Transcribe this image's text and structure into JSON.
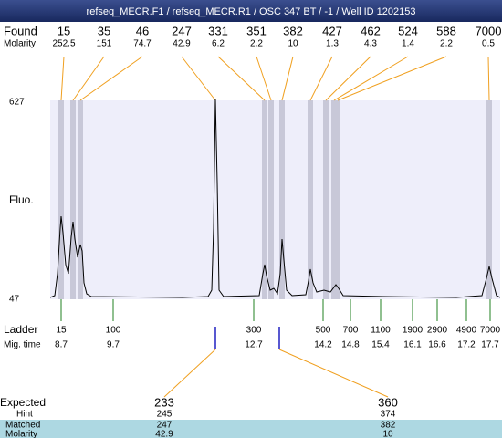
{
  "title": "refseq_MECR.F1 / refseq_MECR.R1 / OSC 347 BT / -1 / Well ID 1202153",
  "found": {
    "label": "Found",
    "molarity_label": "Molarity",
    "sizes": [
      15,
      35,
      46,
      247,
      331,
      351,
      382,
      427,
      462,
      524,
      588,
      7000
    ],
    "molarity": [
      252.5,
      151,
      74.7,
      42.9,
      6.2,
      2.2,
      10,
      1.3,
      4.3,
      1.4,
      2.2,
      0.5
    ]
  },
  "axis": {
    "label": "Fluo.",
    "max": 627,
    "min": 47
  },
  "ladder": {
    "label": "Ladder",
    "mig_label": "Mig. time",
    "sizes": [
      15,
      100,
      300,
      500,
      700,
      1100,
      1900,
      2900,
      4900,
      7000
    ],
    "mig_times": [
      8.7,
      9.7,
      12.7,
      14.2,
      14.8,
      15.4,
      16.1,
      16.6,
      17.2,
      17.7
    ]
  },
  "expected": {
    "label": "Expected",
    "hint_label": "Hint",
    "matched_label": "Matched",
    "molarity_label": "Molarity",
    "values": [
      233,
      360
    ],
    "hint": [
      245,
      374
    ],
    "matched": [
      247,
      382
    ],
    "molarity": [
      42.9,
      10
    ]
  }
}
